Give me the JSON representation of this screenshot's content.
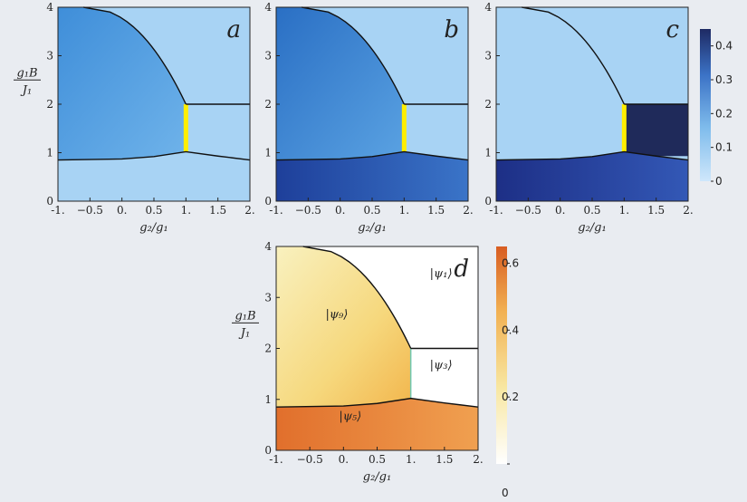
{
  "chart_data": [
    {
      "panel": "a",
      "type": "heatmap",
      "xlim": [
        -1,
        2
      ],
      "ylim": [
        0,
        4
      ],
      "xticks": [
        "-1.",
        "−0.5",
        "0.",
        "0.5",
        "1.",
        "1.5",
        "2."
      ],
      "yticks": [
        "0",
        "1",
        "2",
        "3",
        "4"
      ],
      "xlabel": "g₂/g₁",
      "ylabel_num": "g₁B",
      "ylabel_den": "J₁",
      "regions": {
        "upper_left": 0.22,
        "upper_right": 0.04,
        "right_box": 0.04,
        "bottom": 0.04
      },
      "highlight": "#ffee00"
    },
    {
      "panel": "b",
      "type": "heatmap",
      "xlim": [
        -1,
        2
      ],
      "ylim": [
        0,
        4
      ],
      "xticks": [
        "-1.",
        "−0.5",
        "0.",
        "0.5",
        "1.",
        "1.5",
        "2."
      ],
      "yticks": [
        "0",
        "1",
        "2",
        "3",
        "4"
      ],
      "xlabel": "g₂/g₁",
      "regions": {
        "upper_left": 0.3,
        "upper_right": 0.04,
        "right_box": 0.04,
        "bottom": 0.36
      },
      "highlight": "#ffee00"
    },
    {
      "panel": "c",
      "type": "heatmap",
      "xlim": [
        -1,
        2
      ],
      "ylim": [
        0,
        4
      ],
      "xticks": [
        "-1.",
        "−0.5",
        "0.",
        "0.5",
        "1.",
        "1.5",
        "2."
      ],
      "yticks": [
        "0",
        "1",
        "2",
        "3",
        "4"
      ],
      "xlabel": "g₂/g₁",
      "regions": {
        "upper_left": 0.04,
        "upper_right": 0.04,
        "right_box": 0.46,
        "bottom": 0.4
      },
      "highlight": "#ffee00",
      "colorbar": {
        "ticks": [
          "0",
          "0.1",
          "0.2",
          "0.3",
          "0.4"
        ],
        "range": [
          0,
          0.45
        ],
        "colormap": "blues"
      }
    },
    {
      "panel": "d",
      "type": "heatmap",
      "xlim": [
        -1,
        2
      ],
      "ylim": [
        0,
        4
      ],
      "xticks": [
        "-1.",
        "−0.5",
        "0.",
        "0.5",
        "1.",
        "1.5",
        "2."
      ],
      "yticks": [
        "0",
        "1",
        "2",
        "3",
        "4"
      ],
      "xlabel": "g₂/g₁",
      "ylabel_num": "g₁B",
      "ylabel_den": "J₁",
      "region_labels": [
        "|ψ₁⟩",
        "|ψ₉⟩",
        "|ψ₃⟩",
        "|ψ₅⟩"
      ],
      "regions": {
        "upper_left": 0.2,
        "upper_right": 0,
        "right_box": 0,
        "bottom": 0.55
      },
      "colorbar": {
        "ticks": [
          "0",
          "0.2",
          "0.4",
          "0.6"
        ],
        "range": [
          0,
          0.65
        ],
        "colormap": "oranges"
      }
    }
  ]
}
